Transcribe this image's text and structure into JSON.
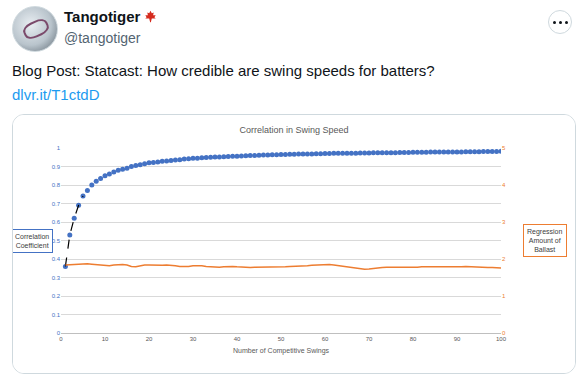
{
  "header": {
    "name": "Tangotiger",
    "handle": "@tangotiger"
  },
  "text": "Blog Post: Statcast: How credible are swing speeds for batters?",
  "link": "dlvr.it/T1ctdD",
  "chart_data": {
    "type": "scatter",
    "title": "Correlation in Swing Speed",
    "x_label": "Number of Competitive Swings",
    "y_label": [
      "Correlation",
      "Coefficient"
    ],
    "y2_label": [
      "Regression",
      "Amount of",
      "Ballast"
    ],
    "xlim": [
      0,
      100
    ],
    "xticks": [
      0,
      10,
      20,
      30,
      40,
      50,
      60,
      70,
      80,
      90,
      100
    ],
    "ylim": [
      0,
      1
    ],
    "yticks": [
      0,
      0.1,
      0.2,
      0.3,
      0.4,
      0.5,
      0.6,
      0.7,
      0.8,
      0.9,
      1
    ],
    "y2lim": [
      0,
      5
    ],
    "y2ticks": [
      0,
      1,
      2,
      3,
      4,
      5
    ],
    "grid": true,
    "x": [
      1,
      2,
      3,
      4,
      5,
      6,
      7,
      8,
      9,
      10,
      11,
      12,
      13,
      14,
      15,
      16,
      17,
      18,
      19,
      20,
      21,
      22,
      23,
      24,
      25,
      26,
      27,
      28,
      29,
      30,
      31,
      32,
      33,
      34,
      35,
      36,
      37,
      38,
      39,
      40,
      41,
      42,
      43,
      44,
      45,
      46,
      47,
      48,
      49,
      50,
      51,
      52,
      53,
      54,
      55,
      56,
      57,
      58,
      59,
      60,
      61,
      62,
      63,
      64,
      65,
      66,
      67,
      68,
      69,
      70,
      71,
      72,
      73,
      74,
      75,
      76,
      77,
      78,
      79,
      80,
      81,
      82,
      83,
      84,
      85,
      86,
      87,
      88,
      89,
      90,
      91,
      92,
      93,
      94,
      95,
      96,
      97,
      98,
      99,
      100
    ],
    "series": [
      {
        "type": "scatter",
        "marker": "circle",
        "color": "#4472C4",
        "values": [
          0.36,
          0.53,
          0.62,
          0.69,
          0.74,
          0.77,
          0.8,
          0.82,
          0.835,
          0.85,
          0.86,
          0.87,
          0.88,
          0.885,
          0.89,
          0.9,
          0.905,
          0.91,
          0.915,
          0.92,
          0.922,
          0.925,
          0.928,
          0.93,
          0.933,
          0.935,
          0.937,
          0.94,
          0.942,
          0.944,
          0.945,
          0.947,
          0.948,
          0.95,
          0.951,
          0.952,
          0.953,
          0.954,
          0.955,
          0.956,
          0.957,
          0.958,
          0.959,
          0.96,
          0.961,
          0.962,
          0.962,
          0.963,
          0.964,
          0.965,
          0.965,
          0.966,
          0.966,
          0.967,
          0.967,
          0.968,
          0.968,
          0.969,
          0.969,
          0.97,
          0.97,
          0.971,
          0.971,
          0.971,
          0.972,
          0.972,
          0.972,
          0.973,
          0.973,
          0.973,
          0.974,
          0.974,
          0.974,
          0.975,
          0.975,
          0.975,
          0.976,
          0.976,
          0.976,
          0.977,
          0.977,
          0.977,
          0.977,
          0.978,
          0.978,
          0.978,
          0.978,
          0.979,
          0.979,
          0.979,
          0.979,
          0.98,
          0.98,
          0.98,
          0.98,
          0.981,
          0.981,
          0.981,
          0.981,
          0.982
        ]
      },
      {
        "type": "line",
        "line_style": "dashed",
        "color": "#000000",
        "x": [
          1,
          2,
          3,
          4,
          5
        ],
        "values": [
          0.36,
          0.53,
          0.62,
          0.69,
          0.74
        ]
      },
      {
        "type": "line",
        "axis": "y2",
        "color": "#ED7D31",
        "values": [
          1.84,
          1.85,
          1.86,
          1.87,
          1.87,
          1.87,
          1.86,
          1.85,
          1.83,
          1.82,
          1.82,
          1.84,
          1.85,
          1.85,
          1.84,
          1.8,
          1.79,
          1.82,
          1.84,
          1.84,
          1.83,
          1.82,
          1.83,
          1.84,
          1.84,
          1.82,
          1.8,
          1.79,
          1.8,
          1.82,
          1.83,
          1.82,
          1.8,
          1.79,
          1.78,
          1.78,
          1.79,
          1.8,
          1.8,
          1.79,
          1.78,
          1.77,
          1.77,
          1.78,
          1.78,
          1.77,
          1.77,
          1.78,
          1.78,
          1.79,
          1.79,
          1.8,
          1.8,
          1.8,
          1.81,
          1.82,
          1.83,
          1.84,
          1.84,
          1.85,
          1.85,
          1.84,
          1.82,
          1.8,
          1.78,
          1.76,
          1.74,
          1.72,
          1.72,
          1.73,
          1.75,
          1.76,
          1.77,
          1.78,
          1.78,
          1.77,
          1.76,
          1.76,
          1.77,
          1.78,
          1.78,
          1.79,
          1.79,
          1.78,
          1.78,
          1.77,
          1.77,
          1.78,
          1.78,
          1.79,
          1.79,
          1.8,
          1.79,
          1.79,
          1.78,
          1.78,
          1.77,
          1.77,
          1.76,
          1.76
        ]
      }
    ]
  }
}
